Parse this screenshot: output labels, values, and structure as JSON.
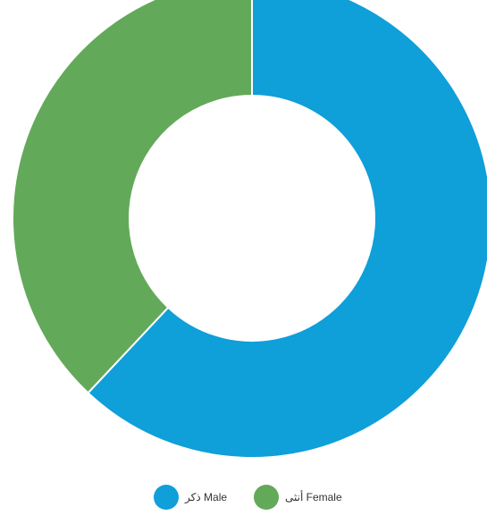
{
  "chart_data": {
    "type": "pie",
    "variant": "donut",
    "title": "",
    "categories": [
      "ذكر Male",
      "أنثى Female"
    ],
    "values": [
      62,
      38
    ],
    "colors": [
      "#0f9fd9",
      "#63a95a"
    ],
    "legend_position": "bottom-center",
    "start_angle_deg": 0,
    "direction": "clockwise"
  }
}
